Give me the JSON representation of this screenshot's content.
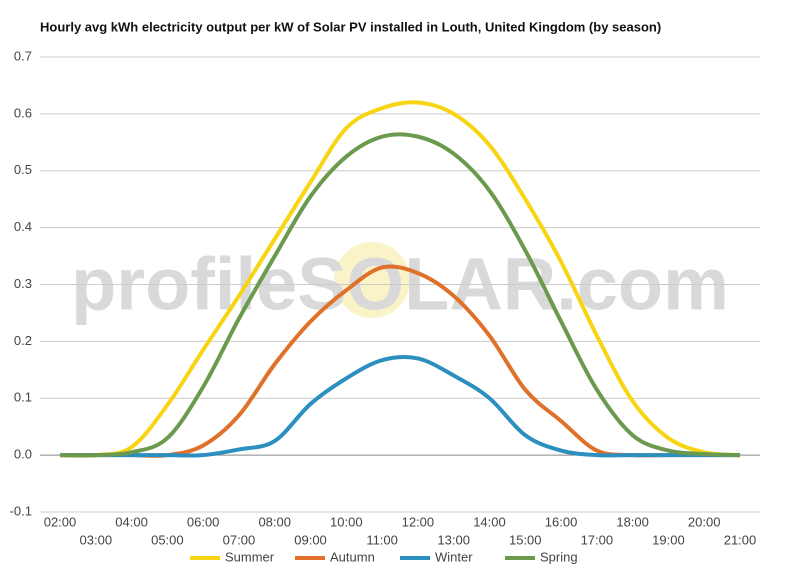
{
  "chart_data": {
    "type": "line",
    "title": "Hourly avg kWh electricity output per kW of Solar PV installed in Louth, United Kingdom (by season)",
    "watermark": "profileSOLAR.com",
    "categories": [
      "02:00",
      "03:00",
      "04:00",
      "05:00",
      "06:00",
      "07:00",
      "08:00",
      "09:00",
      "10:00",
      "11:00",
      "12:00",
      "13:00",
      "14:00",
      "15:00",
      "16:00",
      "17:00",
      "18:00",
      "19:00",
      "20:00",
      "21:00"
    ],
    "series": [
      {
        "name": "Summer",
        "color": "#f7d414",
        "values": [
          0,
          0,
          0.014,
          0.088,
          0.185,
          0.28,
          0.38,
          0.48,
          0.575,
          0.61,
          0.62,
          0.6,
          0.545,
          0.45,
          0.34,
          0.21,
          0.095,
          0.03,
          0.005,
          0
        ]
      },
      {
        "name": "Autumn",
        "color": "#e0712b",
        "values": [
          0,
          0,
          0,
          0,
          0.017,
          0.07,
          0.16,
          0.235,
          0.29,
          0.33,
          0.32,
          0.28,
          0.21,
          0.115,
          0.06,
          0.008,
          0,
          0,
          0,
          0
        ]
      },
      {
        "name": "Winter",
        "color": "#2b8fbf",
        "values": [
          0,
          0,
          0,
          0,
          0,
          0.01,
          0.025,
          0.09,
          0.135,
          0.167,
          0.17,
          0.14,
          0.1,
          0.035,
          0.008,
          0,
          0,
          0,
          0,
          0
        ]
      },
      {
        "name": "Spring",
        "color": "#6b9a4e",
        "values": [
          0,
          0,
          0.005,
          0.03,
          0.12,
          0.24,
          0.35,
          0.455,
          0.525,
          0.56,
          0.56,
          0.53,
          0.465,
          0.36,
          0.235,
          0.115,
          0.035,
          0.008,
          0.002,
          0
        ]
      }
    ],
    "ylim": [
      -0.1,
      0.7
    ],
    "yticks": [
      -0.1,
      {
        "value": 0,
        "label": "0.0"
      },
      0.1,
      0.2,
      0.3,
      0.4,
      0.5,
      0.6,
      0.7
    ],
    "grid": true,
    "legend": "bottom"
  }
}
